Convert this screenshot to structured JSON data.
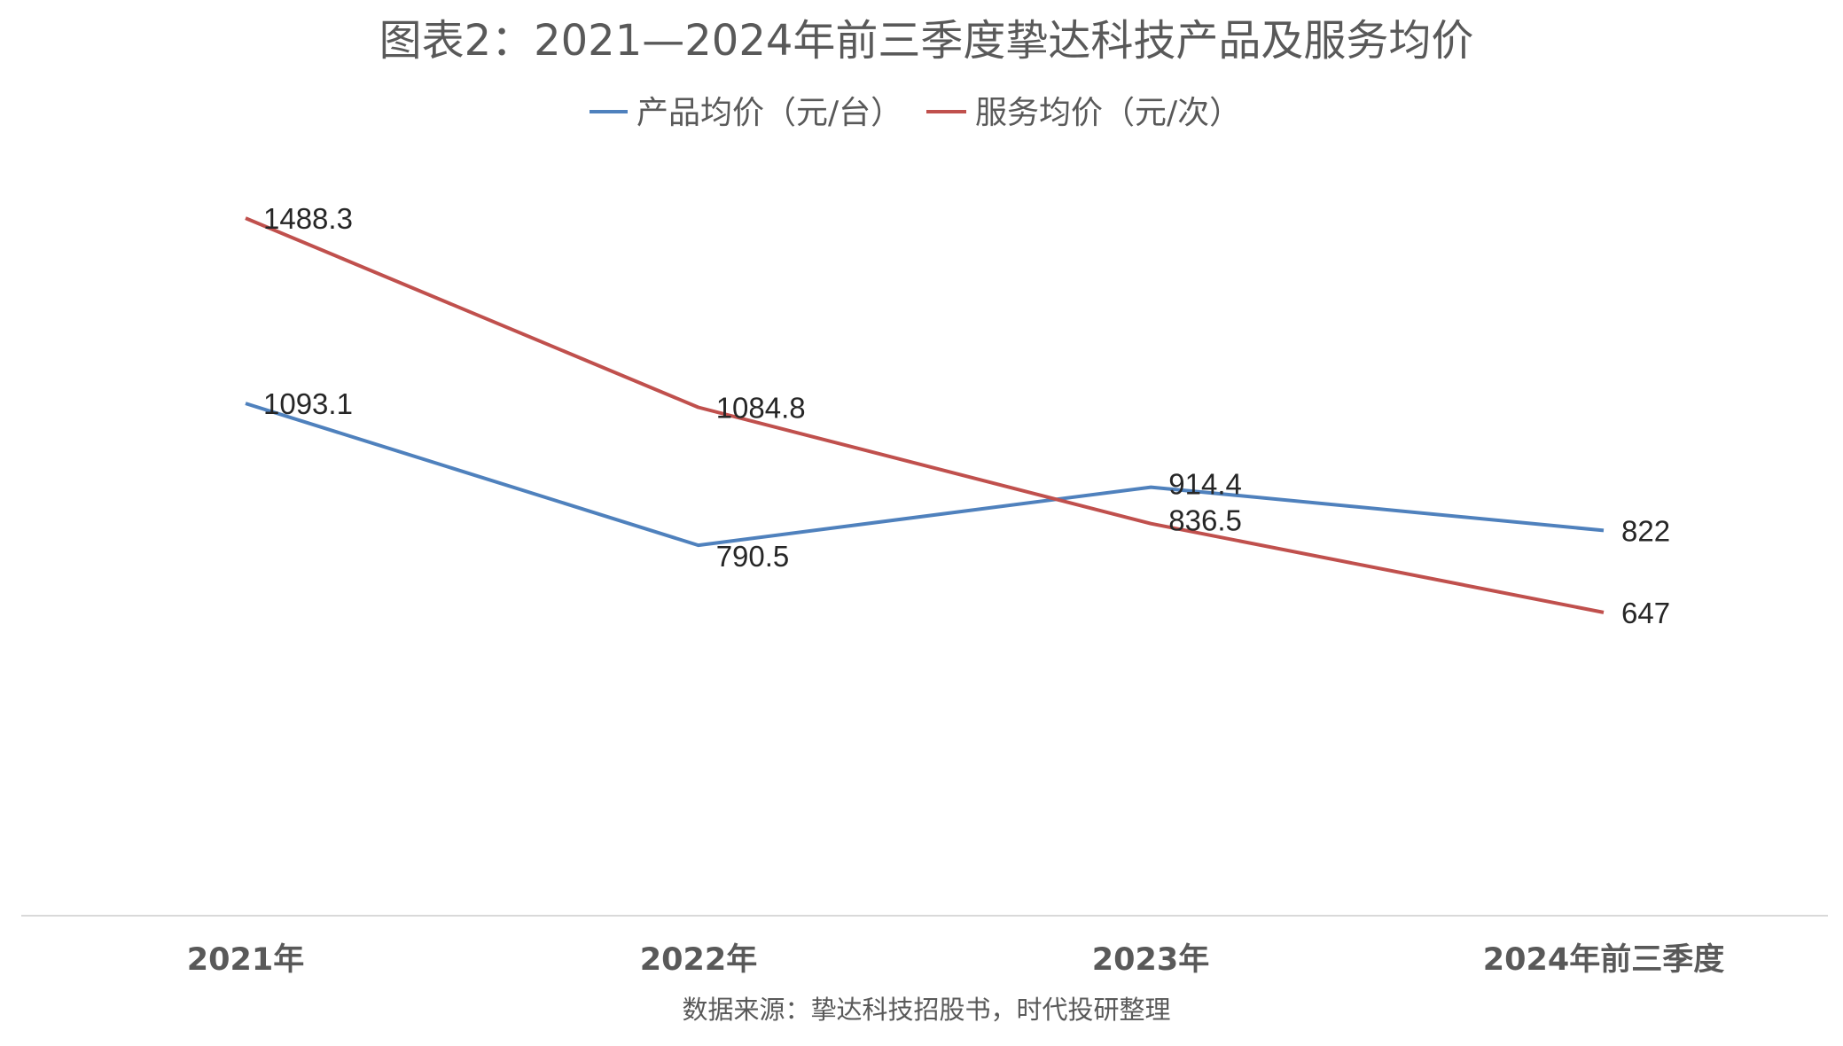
{
  "chart_data": {
    "type": "line",
    "title": "图表2：2021—2024年前三季度挚达科技产品及服务均价",
    "categories": [
      "2021年",
      "2022年",
      "2023年",
      "2024年前三季度"
    ],
    "series": [
      {
        "name": "产品均价（元/台）",
        "color": "#4f81bd",
        "values": [
          1093.1,
          790.5,
          914.4,
          822
        ],
        "labels": [
          "1093.1",
          "790.5",
          "914.4",
          "822"
        ]
      },
      {
        "name": "服务均价（元/次）",
        "color": "#c0504d",
        "values": [
          1488.3,
          1084.8,
          836.5,
          647
        ],
        "labels": [
          "1488.3",
          "1084.8",
          "836.5",
          "647"
        ]
      }
    ],
    "ylim": [
      0,
      1600
    ],
    "grid": false,
    "legend_position": "top-center",
    "xlabel": "",
    "ylabel": ""
  },
  "source_note": "数据来源：挚达科技招股书，时代投研整理"
}
